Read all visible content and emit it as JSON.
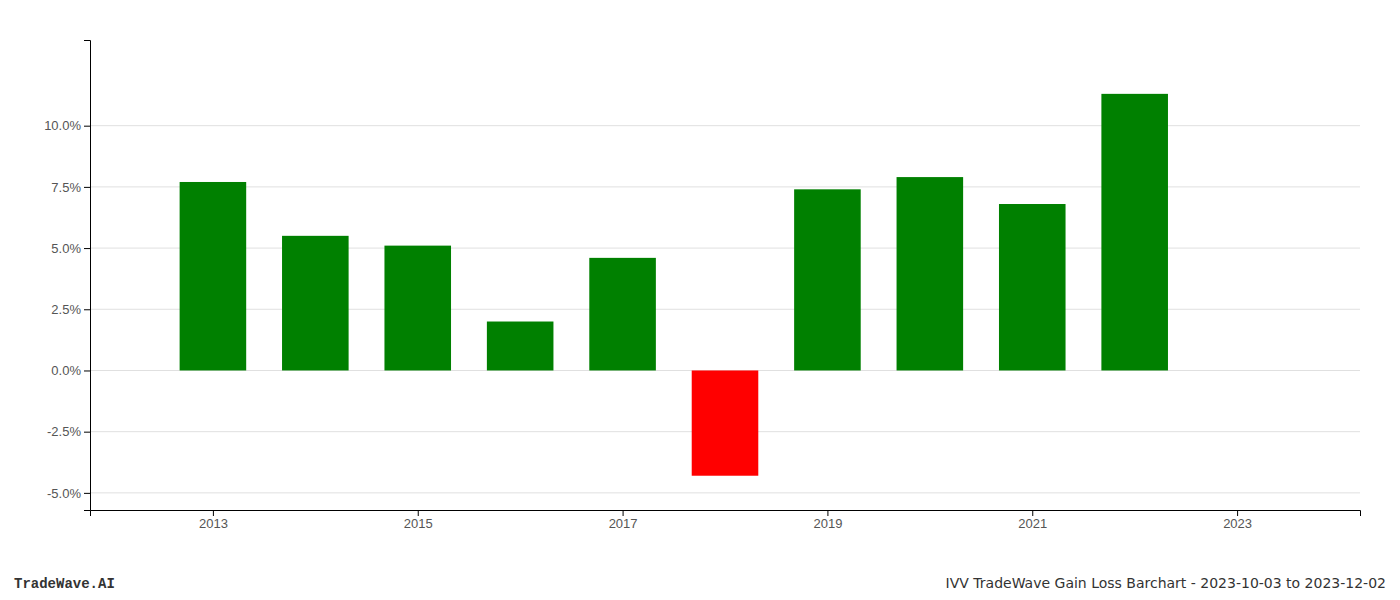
{
  "chart_data": {
    "type": "bar",
    "x": [
      2013,
      2014,
      2015,
      2016,
      2017,
      2018,
      2019,
      2020,
      2021,
      2022
    ],
    "values": [
      0.077,
      0.055,
      0.051,
      0.02,
      0.046,
      -0.043,
      0.074,
      0.079,
      0.068,
      0.113
    ],
    "colors": [
      "#008000",
      "#008000",
      "#008000",
      "#008000",
      "#008000",
      "#ff0000",
      "#008000",
      "#008000",
      "#008000",
      "#008000"
    ],
    "xlim": [
      2011.8,
      2024.2
    ],
    "xticks": [
      2013,
      2015,
      2017,
      2019,
      2021,
      2023
    ],
    "ylim": [
      -0.057,
      0.135
    ],
    "yticks": [
      {
        "value": -0.05,
        "label": "-5.0%"
      },
      {
        "value": -0.025,
        "label": "-2.5%"
      },
      {
        "value": 0.0,
        "label": "0.0%"
      },
      {
        "value": 0.025,
        "label": "2.5%"
      },
      {
        "value": 0.05,
        "label": "5.0%"
      },
      {
        "value": 0.075,
        "label": "7.5%"
      },
      {
        "value": 0.1,
        "label": "10.0%"
      }
    ],
    "grid": true,
    "annotations": [
      "TradeWave.AI",
      "IVV TradeWave Gain Loss Barchart - 2023-10-03 to 2023-12-02"
    ]
  }
}
